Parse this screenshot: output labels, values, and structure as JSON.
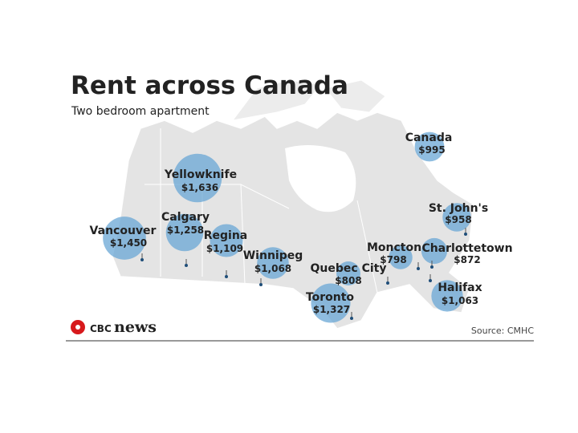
{
  "map": {
    "title": "Rent across Canada",
    "subtitle": "Two bedroom apartment",
    "cities": [
      {
        "name": "Canada",
        "value": 995,
        "value_label": "$995"
      },
      {
        "name": "Yellowknife",
        "value": 1636,
        "value_label": "$1,636"
      },
      {
        "name": "Vancouver",
        "value": 1450,
        "value_label": "$1,450"
      },
      {
        "name": "Calgary",
        "value": 1258,
        "value_label": "$1,258"
      },
      {
        "name": "Regina",
        "value": 1109,
        "value_label": "$1,109"
      },
      {
        "name": "Winnipeg",
        "value": 1068,
        "value_label": "$1,068"
      },
      {
        "name": "Quebec City",
        "value": 808,
        "value_label": "$808"
      },
      {
        "name": "Toronto",
        "value": 1327,
        "value_label": "$1,327"
      },
      {
        "name": "Moncton",
        "value": 798,
        "value_label": "$798"
      },
      {
        "name": "Charlottetown",
        "value": 872,
        "value_label": "$872"
      },
      {
        "name": "Halifax",
        "value": 1063,
        "value_label": "$1,063"
      },
      {
        "name": "St. John's",
        "value": 958,
        "value_label": "$958"
      }
    ],
    "brand": {
      "mark": "CBC",
      "word": "news"
    },
    "source": "Source: CMHC"
  }
}
